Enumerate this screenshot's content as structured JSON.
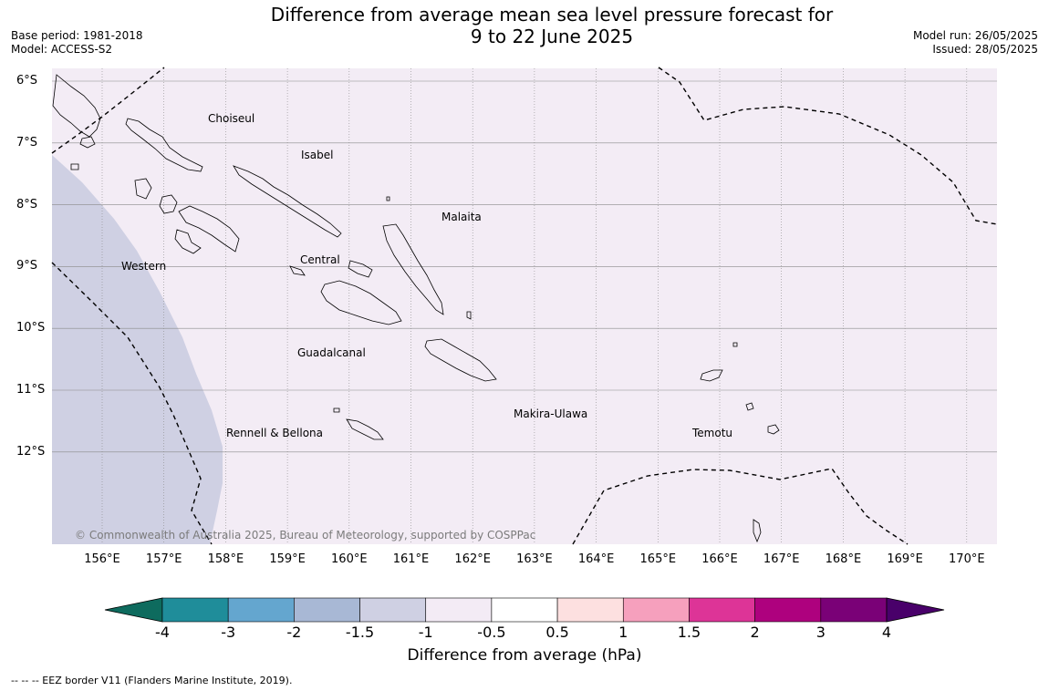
{
  "title_line1": "Difference from average mean sea level pressure forecast for",
  "title_line2": "9 to 22 June 2025",
  "base_period": "Base period: 1981-2018",
  "model": "Model: ACCESS-S2",
  "model_run": "Model run: 26/05/2025",
  "issued": "Issued: 28/05/2025",
  "copyright": "© Commonwealth of Australia 2025, Bureau of Meteorology, supported by COSPPac",
  "lat_labels": [
    "6°S",
    "7°S",
    "8°S",
    "9°S",
    "10°S",
    "11°S",
    "12°S"
  ],
  "lon_labels": [
    "156°E",
    "157°E",
    "158°E",
    "159°E",
    "160°E",
    "161°E",
    "162°E",
    "163°E",
    "164°E",
    "165°E",
    "166°E",
    "167°E",
    "168°E",
    "169°E",
    "170°E"
  ],
  "regions": {
    "choiseul": "Choiseul",
    "isabel": "Isabel",
    "malaita": "Malaita",
    "western": "Western",
    "central": "Central",
    "guadalcanal": "Guadalcanal",
    "makira": "Makira-Ulawa",
    "rennell": "Rennell & Bellona",
    "temotu": "Temotu"
  },
  "colorbar": {
    "label": "Difference from average (hPa)",
    "ticks": [
      "-4",
      "-3",
      "-2",
      "-1.5",
      "-1",
      "-0.5",
      "0.5",
      "1",
      "1.5",
      "2",
      "3",
      "4"
    ],
    "colors": [
      "#0e6b5e",
      "#1f8d9a",
      "#64a6cf",
      "#a8b8d5",
      "#cfd0e3",
      "#f3ebf5",
      "#ffffff",
      "#fde0e0",
      "#f6a0bd",
      "#dd3497",
      "#ae017e",
      "#7a0177",
      "#49006a"
    ]
  },
  "map_colors": {
    "ocean_light": "#f3ecf5",
    "ocean_negative": "#cfd0e3"
  },
  "footnote": "-- -- -- EEZ border V11 (Flanders Marine Institute, 2019)."
}
